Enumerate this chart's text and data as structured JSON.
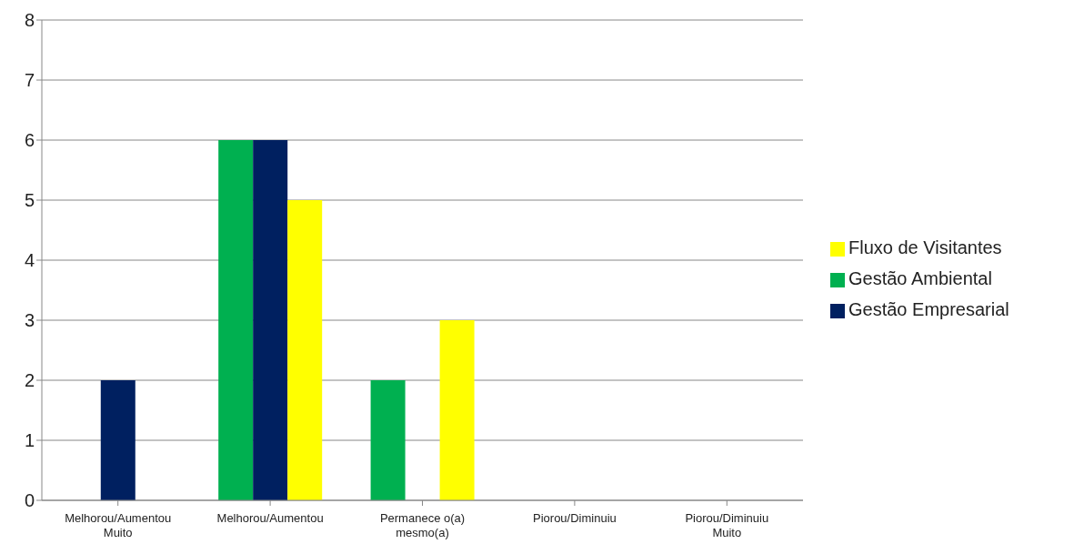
{
  "chart_data": {
    "type": "bar",
    "categories": [
      "Melhorou/Aumentou Muito",
      "Melhorou/Aumentou",
      "Permanece o(a) mesmo(a)",
      "Piorou/Diminuiu",
      "Piorou/Diminuiu Muito"
    ],
    "series": [
      {
        "name": "Gestão Ambiental",
        "color": "#00b050",
        "values": [
          0,
          6,
          2,
          0,
          0
        ]
      },
      {
        "name": "Gestão Empresarial",
        "color": "#002060",
        "values": [
          2,
          6,
          0,
          0,
          0
        ]
      },
      {
        "name": "Fluxo de Visitantes",
        "color": "#ffff00",
        "values": [
          0,
          5,
          3,
          0,
          0
        ]
      }
    ],
    "ylim": [
      0,
      8
    ],
    "yticks": [
      0,
      1,
      2,
      3,
      4,
      5,
      6,
      7,
      8
    ],
    "grid": "y",
    "legend": "right"
  }
}
